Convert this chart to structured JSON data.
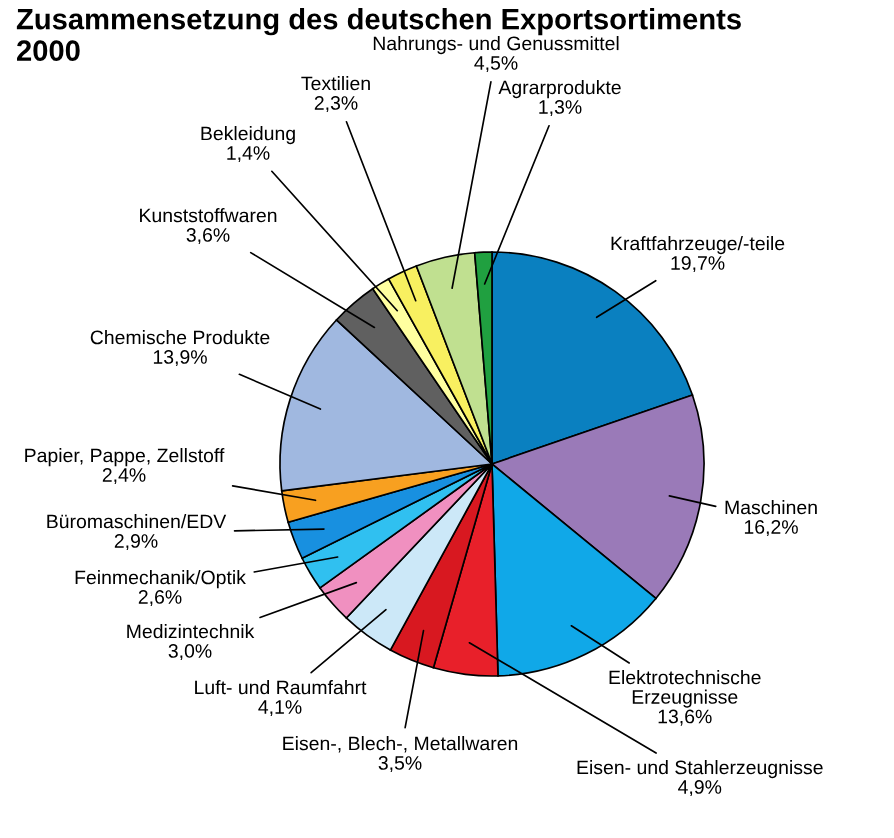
{
  "chart_data": {
    "type": "pie",
    "title": "Zusammensetzung des deutschen Exportsortiments\n2000",
    "categories": [
      "Kraftfahrzeuge/-teile",
      "Maschinen",
      "Elektrotechnische\nErzeugnisse",
      "Eisen- und Stahlerzeugnisse",
      "Eisen-, Blech-, Metallwaren",
      "Luft- und Raumfahrt",
      "Medizintechnik",
      "Feinmechanik/Optik",
      "Büromaschinen/EDV",
      "Papier, Pappe, Zellstoff",
      "Chemische Produkte",
      "Kunststoffwaren",
      "Bekleidung",
      "Textilien",
      "Nahrungs- und Genussmittel",
      "Agrarprodukte"
    ],
    "values": [
      19.7,
      16.2,
      13.6,
      4.9,
      3.5,
      4.1,
      3.0,
      2.6,
      2.9,
      2.4,
      13.9,
      3.6,
      1.4,
      2.3,
      4.5,
      1.3
    ],
    "value_labels": [
      "19,7%",
      "16,2%",
      "13,6%",
      "4,9%",
      "3,5%",
      "4,1%",
      "3,0%",
      "2,6%",
      "2,9%",
      "2,4%",
      "13,9%",
      "3,6%",
      "1,4%",
      "2,3%",
      "4,5%",
      "1,3%"
    ],
    "colors": [
      "#0a80c0",
      "#9a7ab8",
      "#10a8e8",
      "#e8202a",
      "#d81820",
      "#cce8f8",
      "#f090c0",
      "#30c0f0",
      "#1890e0",
      "#f8a020",
      "#a0b8e0",
      "#606060",
      "#ffffa0",
      "#f8f060",
      "#c0e090",
      "#20a040"
    ]
  }
}
